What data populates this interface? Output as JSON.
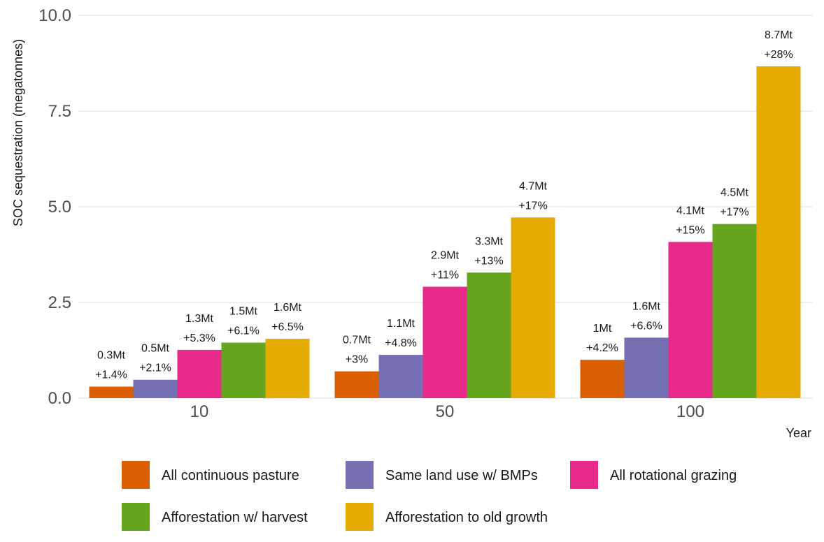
{
  "chart_data": {
    "type": "bar",
    "title": "",
    "xlabel": "Year",
    "ylabel": "SOC sequestration (megatonnes)",
    "ylim": [
      0,
      10
    ],
    "yticks": [
      "0.0",
      "2.5",
      "5.0",
      "7.5",
      "10.0"
    ],
    "ytick_values": [
      0,
      2.5,
      5,
      7.5,
      10
    ],
    "grid": true,
    "legend_position": "bottom",
    "categories": [
      "10",
      "50",
      "100"
    ],
    "series": [
      {
        "name": "All continuous pasture",
        "color": "#d95f02",
        "values": [
          0.3,
          0.7,
          1.0
        ],
        "labels": [
          [
            "0.3Mt",
            "+1.4%"
          ],
          [
            "0.7Mt",
            "+3%"
          ],
          [
            "1Mt",
            "+4.2%"
          ]
        ]
      },
      {
        "name": "Same land use w/ BMPs",
        "color": "#7570b3",
        "values": [
          0.48,
          1.13,
          1.58
        ],
        "labels": [
          [
            "0.5Mt",
            "+2.1%"
          ],
          [
            "1.1Mt",
            "+4.8%"
          ],
          [
            "1.6Mt",
            "+6.6%"
          ]
        ]
      },
      {
        "name": "All rotational grazing",
        "color": "#e7298a",
        "values": [
          1.26,
          2.91,
          4.08
        ],
        "labels": [
          [
            "1.3Mt",
            "+5.3%"
          ],
          [
            "2.9Mt",
            "+11%"
          ],
          [
            "4.1Mt",
            "+15%"
          ]
        ]
      },
      {
        "name": "Afforestation w/ harvest",
        "color": "#66a61e",
        "values": [
          1.45,
          3.28,
          4.55
        ],
        "labels": [
          [
            "1.5Mt",
            "+6.1%"
          ],
          [
            "3.3Mt",
            "+13%"
          ],
          [
            "4.5Mt",
            "+17%"
          ]
        ]
      },
      {
        "name": "Afforestation to old growth",
        "color": "#e6ab02",
        "values": [
          1.55,
          4.72,
          8.67
        ],
        "labels": [
          [
            "1.6Mt",
            "+6.5%"
          ],
          [
            "4.7Mt",
            "+17%"
          ],
          [
            "8.7Mt",
            "+28%"
          ]
        ]
      }
    ]
  }
}
